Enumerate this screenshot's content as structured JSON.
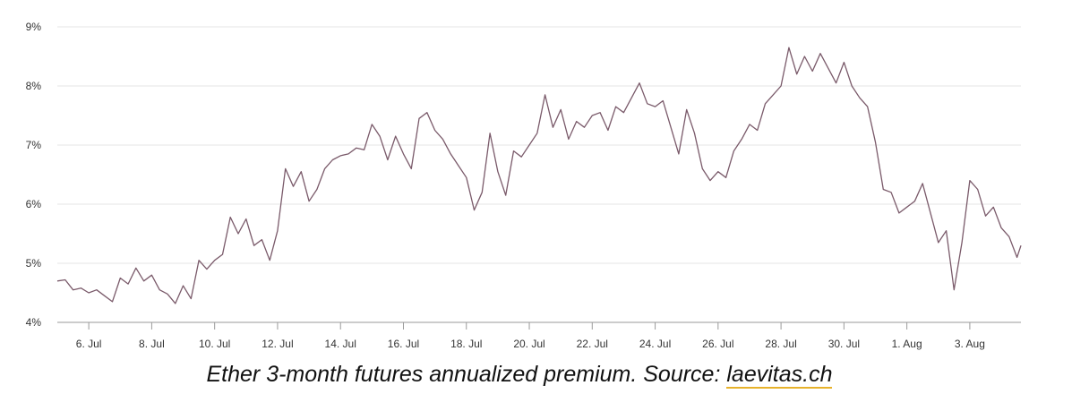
{
  "caption": {
    "text": "Ether 3-month futures annualized premium. Source: ",
    "link": "laevitas.ch",
    "link_underline_color": "#e7b22b"
  },
  "chart_data": {
    "type": "line",
    "title": "",
    "xlabel": "",
    "ylabel": "",
    "grid": true,
    "line_color": "#7a5a6a",
    "ylim": [
      4,
      9
    ],
    "y_ticks": [
      {
        "value": 4,
        "label": "4%"
      },
      {
        "value": 5,
        "label": "5%"
      },
      {
        "value": 6,
        "label": "6%"
      },
      {
        "value": 7,
        "label": "7%"
      },
      {
        "value": 8,
        "label": "8%"
      },
      {
        "value": 9,
        "label": "9%"
      }
    ],
    "xlim": [
      "2022-07-05",
      "2022-08-04 15:00"
    ],
    "x_ticks": [
      {
        "value": "2022-07-06",
        "label": "6. Jul"
      },
      {
        "value": "2022-07-08",
        "label": "8. Jul"
      },
      {
        "value": "2022-07-10",
        "label": "10. Jul"
      },
      {
        "value": "2022-07-12",
        "label": "12. Jul"
      },
      {
        "value": "2022-07-14",
        "label": "14. Jul"
      },
      {
        "value": "2022-07-16",
        "label": "16. Jul"
      },
      {
        "value": "2022-07-18",
        "label": "18. Jul"
      },
      {
        "value": "2022-07-20",
        "label": "20. Jul"
      },
      {
        "value": "2022-07-22",
        "label": "22. Jul"
      },
      {
        "value": "2022-07-24",
        "label": "24. Jul"
      },
      {
        "value": "2022-07-26",
        "label": "26. Jul"
      },
      {
        "value": "2022-07-28",
        "label": "28. Jul"
      },
      {
        "value": "2022-07-30",
        "label": "30. Jul"
      },
      {
        "value": "2022-08-01",
        "label": "1. Aug"
      },
      {
        "value": "2022-08-03",
        "label": "3. Aug"
      }
    ],
    "series": [
      {
        "points": [
          [
            "2022-07-05 00:00",
            4.7
          ],
          [
            "2022-07-05 06:00",
            4.72
          ],
          [
            "2022-07-05 12:00",
            4.55
          ],
          [
            "2022-07-05 18:00",
            4.58
          ],
          [
            "2022-07-06 00:00",
            4.5
          ],
          [
            "2022-07-06 06:00",
            4.55
          ],
          [
            "2022-07-06 12:00",
            4.45
          ],
          [
            "2022-07-06 18:00",
            4.35
          ],
          [
            "2022-07-07 00:00",
            4.75
          ],
          [
            "2022-07-07 06:00",
            4.65
          ],
          [
            "2022-07-07 12:00",
            4.92
          ],
          [
            "2022-07-07 18:00",
            4.7
          ],
          [
            "2022-07-08 00:00",
            4.8
          ],
          [
            "2022-07-08 06:00",
            4.55
          ],
          [
            "2022-07-08 12:00",
            4.48
          ],
          [
            "2022-07-08 18:00",
            4.32
          ],
          [
            "2022-07-09 00:00",
            4.62
          ],
          [
            "2022-07-09 06:00",
            4.4
          ],
          [
            "2022-07-09 12:00",
            5.05
          ],
          [
            "2022-07-09 18:00",
            4.9
          ],
          [
            "2022-07-10 00:00",
            5.05
          ],
          [
            "2022-07-10 06:00",
            5.15
          ],
          [
            "2022-07-10 12:00",
            5.78
          ],
          [
            "2022-07-10 18:00",
            5.5
          ],
          [
            "2022-07-11 00:00",
            5.75
          ],
          [
            "2022-07-11 06:00",
            5.3
          ],
          [
            "2022-07-11 12:00",
            5.4
          ],
          [
            "2022-07-11 18:00",
            5.05
          ],
          [
            "2022-07-12 00:00",
            5.55
          ],
          [
            "2022-07-12 06:00",
            6.6
          ],
          [
            "2022-07-12 12:00",
            6.3
          ],
          [
            "2022-07-12 18:00",
            6.55
          ],
          [
            "2022-07-13 00:00",
            6.05
          ],
          [
            "2022-07-13 06:00",
            6.25
          ],
          [
            "2022-07-13 12:00",
            6.6
          ],
          [
            "2022-07-13 18:00",
            6.75
          ],
          [
            "2022-07-14 00:00",
            6.82
          ],
          [
            "2022-07-14 06:00",
            6.85
          ],
          [
            "2022-07-14 12:00",
            6.95
          ],
          [
            "2022-07-14 18:00",
            6.92
          ],
          [
            "2022-07-15 00:00",
            7.35
          ],
          [
            "2022-07-15 06:00",
            7.15
          ],
          [
            "2022-07-15 12:00",
            6.75
          ],
          [
            "2022-07-15 18:00",
            7.15
          ],
          [
            "2022-07-16 00:00",
            6.85
          ],
          [
            "2022-07-16 06:00",
            6.6
          ],
          [
            "2022-07-16 12:00",
            7.45
          ],
          [
            "2022-07-16 18:00",
            7.55
          ],
          [
            "2022-07-17 00:00",
            7.25
          ],
          [
            "2022-07-17 06:00",
            7.1
          ],
          [
            "2022-07-17 12:00",
            6.85
          ],
          [
            "2022-07-17 18:00",
            6.65
          ],
          [
            "2022-07-18 00:00",
            6.45
          ],
          [
            "2022-07-18 06:00",
            5.9
          ],
          [
            "2022-07-18 12:00",
            6.2
          ],
          [
            "2022-07-18 18:00",
            7.2
          ],
          [
            "2022-07-19 00:00",
            6.55
          ],
          [
            "2022-07-19 06:00",
            6.15
          ],
          [
            "2022-07-19 12:00",
            6.9
          ],
          [
            "2022-07-19 18:00",
            6.8
          ],
          [
            "2022-07-20 00:00",
            7.0
          ],
          [
            "2022-07-20 06:00",
            7.2
          ],
          [
            "2022-07-20 12:00",
            7.85
          ],
          [
            "2022-07-20 18:00",
            7.3
          ],
          [
            "2022-07-21 00:00",
            7.6
          ],
          [
            "2022-07-21 06:00",
            7.1
          ],
          [
            "2022-07-21 12:00",
            7.4
          ],
          [
            "2022-07-21 18:00",
            7.3
          ],
          [
            "2022-07-22 00:00",
            7.5
          ],
          [
            "2022-07-22 06:00",
            7.55
          ],
          [
            "2022-07-22 12:00",
            7.25
          ],
          [
            "2022-07-22 18:00",
            7.65
          ],
          [
            "2022-07-23 00:00",
            7.55
          ],
          [
            "2022-07-23 06:00",
            7.8
          ],
          [
            "2022-07-23 12:00",
            8.05
          ],
          [
            "2022-07-23 18:00",
            7.7
          ],
          [
            "2022-07-24 00:00",
            7.65
          ],
          [
            "2022-07-24 06:00",
            7.75
          ],
          [
            "2022-07-24 12:00",
            7.3
          ],
          [
            "2022-07-24 18:00",
            6.85
          ],
          [
            "2022-07-25 00:00",
            7.6
          ],
          [
            "2022-07-25 06:00",
            7.2
          ],
          [
            "2022-07-25 12:00",
            6.6
          ],
          [
            "2022-07-25 18:00",
            6.4
          ],
          [
            "2022-07-26 00:00",
            6.55
          ],
          [
            "2022-07-26 06:00",
            6.45
          ],
          [
            "2022-07-26 12:00",
            6.9
          ],
          [
            "2022-07-26 18:00",
            7.1
          ],
          [
            "2022-07-27 00:00",
            7.35
          ],
          [
            "2022-07-27 06:00",
            7.25
          ],
          [
            "2022-07-27 12:00",
            7.7
          ],
          [
            "2022-07-27 18:00",
            7.85
          ],
          [
            "2022-07-28 00:00",
            8.0
          ],
          [
            "2022-07-28 06:00",
            8.65
          ],
          [
            "2022-07-28 12:00",
            8.2
          ],
          [
            "2022-07-28 18:00",
            8.5
          ],
          [
            "2022-07-29 00:00",
            8.25
          ],
          [
            "2022-07-29 06:00",
            8.55
          ],
          [
            "2022-07-29 12:00",
            8.3
          ],
          [
            "2022-07-29 18:00",
            8.05
          ],
          [
            "2022-07-30 00:00",
            8.4
          ],
          [
            "2022-07-30 06:00",
            8.0
          ],
          [
            "2022-07-30 12:00",
            7.8
          ],
          [
            "2022-07-30 18:00",
            7.65
          ],
          [
            "2022-07-31 00:00",
            7.05
          ],
          [
            "2022-07-31 06:00",
            6.25
          ],
          [
            "2022-07-31 12:00",
            6.2
          ],
          [
            "2022-07-31 18:00",
            5.85
          ],
          [
            "2022-08-01 00:00",
            5.95
          ],
          [
            "2022-08-01 06:00",
            6.05
          ],
          [
            "2022-08-01 12:00",
            6.35
          ],
          [
            "2022-08-01 18:00",
            5.85
          ],
          [
            "2022-08-02 00:00",
            5.35
          ],
          [
            "2022-08-02 06:00",
            5.55
          ],
          [
            "2022-08-02 12:00",
            4.55
          ],
          [
            "2022-08-02 18:00",
            5.35
          ],
          [
            "2022-08-03 00:00",
            6.4
          ],
          [
            "2022-08-03 06:00",
            6.25
          ],
          [
            "2022-08-03 12:00",
            5.8
          ],
          [
            "2022-08-03 18:00",
            5.95
          ],
          [
            "2022-08-04 00:00",
            5.6
          ],
          [
            "2022-08-04 06:00",
            5.45
          ],
          [
            "2022-08-04 12:00",
            5.1
          ],
          [
            "2022-08-04 15:00",
            5.3
          ]
        ]
      }
    ]
  }
}
